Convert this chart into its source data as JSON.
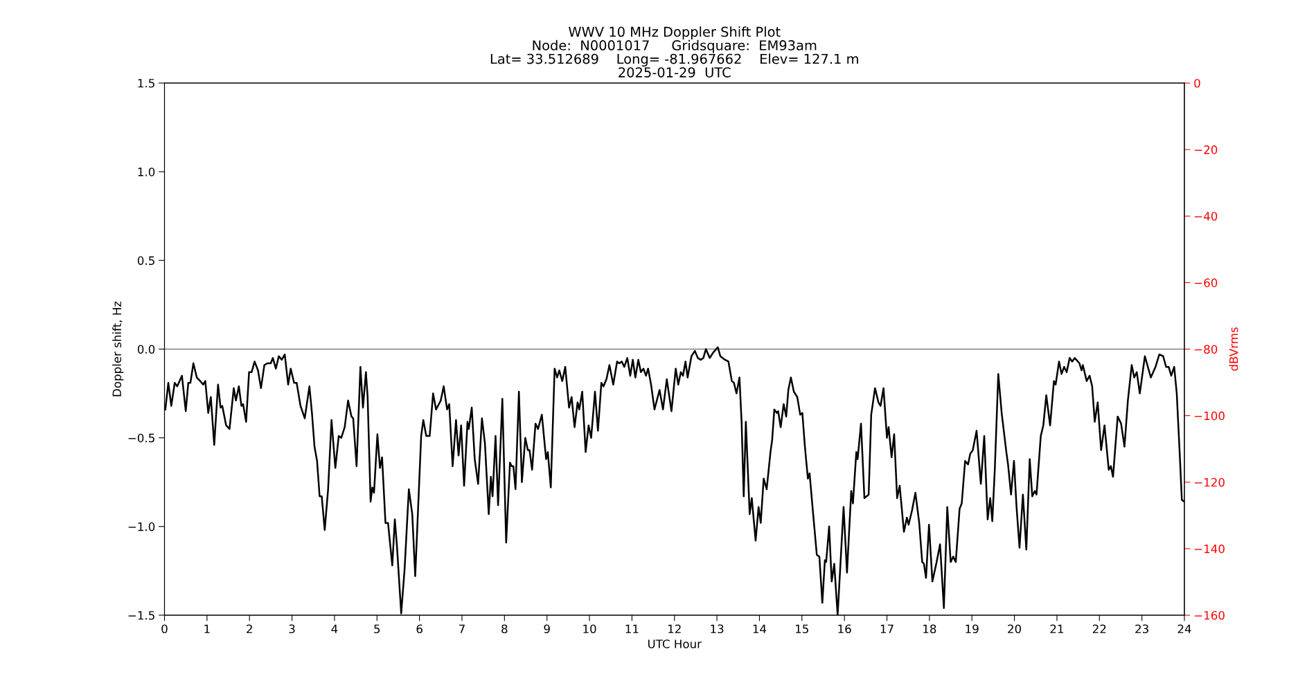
{
  "chart_data": {
    "type": "line",
    "title": "WWV 10 MHz Doppler Shift Plot\nNode:  N0001017     Gridsquare:  EM93am\nLat= 33.512689    Long= -81.967662    Elev= 127.1 m\n2025-01-29  UTC",
    "xlabel": "UTC Hour",
    "ylabel": "Doppler shift, Hz",
    "y2label": "dBVrms",
    "xlim": [
      0,
      24
    ],
    "xticks": [
      0,
      1,
      2,
      3,
      4,
      5,
      6,
      7,
      8,
      9,
      10,
      11,
      12,
      13,
      14,
      15,
      16,
      17,
      18,
      19,
      20,
      21,
      22,
      23,
      24
    ],
    "ylim": [
      -1.5,
      1.5
    ],
    "yticks": [
      {
        "value": -1.5,
        "label": "−1.5"
      },
      {
        "value": -1.0,
        "label": "−1.0"
      },
      {
        "value": -0.5,
        "label": "−0.5"
      },
      {
        "value": 0.0,
        "label": "0.0"
      },
      {
        "value": 0.5,
        "label": "0.5"
      },
      {
        "value": 1.0,
        "label": "1.0"
      },
      {
        "value": 1.5,
        "label": "1.5"
      }
    ],
    "y2lim": [
      -160,
      0
    ],
    "y2ticks": [
      {
        "value": -160,
        "label": "−160"
      },
      {
        "value": -140,
        "label": "−140"
      },
      {
        "value": -120,
        "label": "−120"
      },
      {
        "value": -100,
        "label": "−100"
      },
      {
        "value": -80,
        "label": "−80"
      },
      {
        "value": -60,
        "label": "−60"
      },
      {
        "value": -40,
        "label": "−40"
      },
      {
        "value": -20,
        "label": "−20"
      },
      {
        "value": 0,
        "label": "0"
      }
    ],
    "ref_lines": [
      {
        "axis": "y",
        "value": 0,
        "color": "#808080"
      }
    ],
    "grid": false,
    "legend": false,
    "marker": "none",
    "line_style": "solid",
    "series": [
      {
        "color": "#000000",
        "x": [
          0.02,
          0.09,
          0.16,
          0.24,
          0.3,
          0.41,
          0.5,
          0.56,
          0.61,
          0.68,
          0.76,
          0.84,
          0.91,
          0.96,
          1.03,
          1.09,
          1.17,
          1.26,
          1.32,
          1.36,
          1.45,
          1.53,
          1.63,
          1.68,
          1.75,
          1.81,
          1.85,
          1.92,
          1.99,
          2.05,
          2.12,
          2.2,
          2.27,
          2.35,
          2.42,
          2.5,
          2.55,
          2.62,
          2.69,
          2.76,
          2.83,
          2.91,
          2.97,
          3.05,
          3.11,
          3.2,
          3.3,
          3.41,
          3.47,
          3.53,
          3.59,
          3.65,
          3.7,
          3.77,
          3.85,
          3.93,
          4.02,
          4.1,
          4.16,
          4.24,
          4.32,
          4.4,
          4.44,
          4.52,
          4.61,
          4.67,
          4.74,
          4.78,
          4.85,
          4.89,
          4.93,
          5.01,
          5.07,
          5.12,
          5.2,
          5.26,
          5.36,
          5.42,
          5.47,
          5.57,
          5.65,
          5.75,
          5.83,
          5.9,
          6.04,
          6.09,
          6.16,
          6.24,
          6.32,
          6.39,
          6.5,
          6.57,
          6.65,
          6.7,
          6.78,
          6.86,
          6.92,
          6.98,
          7.05,
          7.13,
          7.16,
          7.23,
          7.3,
          7.38,
          7.47,
          7.54,
          7.63,
          7.68,
          7.72,
          7.79,
          7.85,
          7.95,
          8.04,
          8.13,
          8.17,
          8.21,
          8.26,
          8.34,
          8.41,
          8.49,
          8.55,
          8.59,
          8.65,
          8.73,
          8.79,
          8.88,
          8.98,
          9.02,
          9.09,
          9.18,
          9.24,
          9.29,
          9.36,
          9.43,
          9.52,
          9.58,
          9.65,
          9.72,
          9.76,
          9.83,
          9.91,
          9.98,
          10.04,
          10.13,
          10.2,
          10.28,
          10.33,
          10.4,
          10.47,
          10.56,
          10.65,
          10.7,
          10.76,
          10.82,
          10.89,
          10.96,
          11.02,
          11.08,
          11.15,
          11.21,
          11.27,
          11.33,
          11.38,
          11.45,
          11.53,
          11.65,
          11.73,
          11.82,
          11.93,
          12.03,
          12.09,
          12.15,
          12.2,
          12.26,
          12.31,
          12.4,
          12.48,
          12.55,
          12.62,
          12.68,
          12.74,
          12.83,
          12.91,
          13.02,
          13.08,
          13.19,
          13.27,
          13.35,
          13.4,
          13.46,
          13.53,
          13.58,
          13.63,
          13.68,
          13.77,
          13.82,
          13.91,
          13.98,
          14.03,
          14.1,
          14.17,
          14.26,
          14.3,
          14.35,
          14.41,
          14.44,
          14.5,
          14.57,
          14.63,
          14.68,
          14.74,
          14.81,
          14.89,
          14.96,
          15.01,
          15.07,
          15.14,
          15.18,
          15.26,
          15.35,
          15.41,
          15.48,
          15.54,
          15.57,
          15.64,
          15.7,
          15.76,
          15.84,
          15.98,
          16.06,
          16.16,
          16.2,
          16.28,
          16.31,
          16.39,
          16.47,
          16.57,
          16.63,
          16.72,
          16.8,
          16.85,
          16.92,
          17.0,
          17.04,
          17.11,
          17.17,
          17.24,
          17.3,
          17.4,
          17.47,
          17.51,
          17.59,
          17.67,
          17.76,
          17.83,
          17.87,
          17.92,
          17.99,
          18.07,
          18.17,
          18.25,
          18.34,
          18.42,
          18.5,
          18.56,
          18.62,
          18.71,
          18.76,
          18.84,
          18.91,
          18.96,
          19.02,
          19.11,
          19.21,
          19.29,
          19.37,
          19.43,
          19.48,
          19.54,
          19.62,
          19.7,
          19.81,
          19.85,
          19.92,
          19.99,
          20.05,
          20.12,
          20.2,
          20.28,
          20.36,
          20.42,
          20.48,
          20.52,
          20.62,
          20.68,
          20.75,
          20.84,
          20.93,
          20.97,
          21.05,
          21.11,
          21.17,
          21.23,
          21.3,
          21.36,
          21.42,
          21.53,
          21.58,
          21.61,
          21.7,
          21.77,
          21.83,
          21.89,
          21.96,
          22.04,
          22.12,
          22.22,
          22.27,
          22.32,
          22.43,
          22.51,
          22.59,
          22.67,
          22.76,
          22.82,
          22.88,
          22.95,
          23.07,
          23.21,
          23.32,
          23.41,
          23.5,
          23.57,
          23.63,
          23.69,
          23.76,
          23.82,
          23.89,
          23.94,
          24.0
        ],
        "values": [
          -0.34,
          -0.19,
          -0.32,
          -0.19,
          -0.21,
          -0.15,
          -0.35,
          -0.19,
          -0.19,
          -0.08,
          -0.16,
          -0.18,
          -0.2,
          -0.18,
          -0.36,
          -0.27,
          -0.54,
          -0.2,
          -0.33,
          -0.32,
          -0.43,
          -0.45,
          -0.22,
          -0.29,
          -0.21,
          -0.32,
          -0.31,
          -0.41,
          -0.13,
          -0.13,
          -0.07,
          -0.12,
          -0.22,
          -0.09,
          -0.08,
          -0.08,
          -0.05,
          -0.11,
          -0.04,
          -0.06,
          -0.03,
          -0.2,
          -0.11,
          -0.19,
          -0.19,
          -0.32,
          -0.39,
          -0.21,
          -0.36,
          -0.55,
          -0.63,
          -0.83,
          -0.83,
          -1.02,
          -0.79,
          -0.4,
          -0.67,
          -0.49,
          -0.5,
          -0.44,
          -0.29,
          -0.38,
          -0.39,
          -0.66,
          -0.1,
          -0.33,
          -0.13,
          -0.27,
          -0.86,
          -0.78,
          -0.81,
          -0.48,
          -0.67,
          -0.61,
          -0.98,
          -0.98,
          -1.22,
          -0.96,
          -1.11,
          -1.49,
          -1.24,
          -0.79,
          -0.93,
          -1.28,
          -0.49,
          -0.4,
          -0.49,
          -0.49,
          -0.25,
          -0.34,
          -0.29,
          -0.21,
          -0.34,
          -0.31,
          -0.66,
          -0.4,
          -0.6,
          -0.43,
          -0.77,
          -0.41,
          -0.45,
          -0.33,
          -0.62,
          -0.76,
          -0.39,
          -0.53,
          -0.93,
          -0.72,
          -0.83,
          -0.49,
          -0.88,
          -0.28,
          -1.09,
          -0.64,
          -0.66,
          -0.66,
          -0.79,
          -0.24,
          -0.75,
          -0.5,
          -0.57,
          -0.57,
          -0.68,
          -0.42,
          -0.45,
          -0.37,
          -0.62,
          -0.58,
          -0.78,
          -0.11,
          -0.16,
          -0.12,
          -0.18,
          -0.1,
          -0.33,
          -0.27,
          -0.44,
          -0.3,
          -0.34,
          -0.24,
          -0.58,
          -0.43,
          -0.5,
          -0.24,
          -0.46,
          -0.19,
          -0.21,
          -0.17,
          -0.09,
          -0.2,
          -0.07,
          -0.08,
          -0.07,
          -0.1,
          -0.05,
          -0.15,
          -0.06,
          -0.16,
          -0.06,
          -0.13,
          -0.11,
          -0.15,
          -0.11,
          -0.2,
          -0.34,
          -0.23,
          -0.34,
          -0.17,
          -0.35,
          -0.11,
          -0.2,
          -0.13,
          -0.15,
          -0.07,
          -0.16,
          -0.04,
          -0.01,
          -0.05,
          -0.06,
          -0.05,
          0.0,
          -0.05,
          -0.02,
          0.01,
          -0.04,
          -0.06,
          -0.07,
          -0.18,
          -0.19,
          -0.25,
          -0.16,
          -0.41,
          -0.83,
          -0.41,
          -0.93,
          -0.84,
          -1.08,
          -0.89,
          -0.98,
          -0.73,
          -0.79,
          -0.58,
          -0.51,
          -0.34,
          -0.36,
          -0.35,
          -0.44,
          -0.31,
          -0.38,
          -0.23,
          -0.16,
          -0.24,
          -0.27,
          -0.37,
          -0.36,
          -0.55,
          -0.73,
          -0.7,
          -0.92,
          -1.16,
          -1.17,
          -1.43,
          -1.19,
          -1.2,
          -1.0,
          -1.31,
          -1.21,
          -1.5,
          -0.89,
          -1.26,
          -0.8,
          -0.87,
          -0.58,
          -0.62,
          -0.42,
          -0.84,
          -0.82,
          -0.37,
          -0.22,
          -0.3,
          -0.32,
          -0.22,
          -0.5,
          -0.44,
          -0.61,
          -0.48,
          -0.84,
          -0.77,
          -1.03,
          -0.95,
          -0.99,
          -0.91,
          -0.81,
          -0.98,
          -1.2,
          -1.21,
          -1.29,
          -0.99,
          -1.31,
          -1.2,
          -1.1,
          -1.46,
          -0.89,
          -1.2,
          -1.17,
          -1.2,
          -0.9,
          -0.87,
          -0.63,
          -0.65,
          -0.59,
          -0.57,
          -0.46,
          -0.76,
          -0.49,
          -0.96,
          -0.84,
          -0.97,
          -0.67,
          -0.14,
          -0.36,
          -0.58,
          -0.65,
          -0.82,
          -0.63,
          -0.89,
          -1.12,
          -0.82,
          -1.13,
          -0.62,
          -0.83,
          -0.8,
          -0.82,
          -0.49,
          -0.43,
          -0.26,
          -0.43,
          -0.18,
          -0.2,
          -0.07,
          -0.14,
          -0.1,
          -0.13,
          -0.05,
          -0.07,
          -0.05,
          -0.08,
          -0.12,
          -0.09,
          -0.18,
          -0.15,
          -0.21,
          -0.41,
          -0.3,
          -0.57,
          -0.43,
          -0.68,
          -0.66,
          -0.72,
          -0.38,
          -0.42,
          -0.55,
          -0.29,
          -0.09,
          -0.16,
          -0.13,
          -0.25,
          -0.04,
          -0.16,
          -0.1,
          -0.03,
          -0.04,
          -0.1,
          -0.1,
          -0.15,
          -0.1,
          -0.25,
          -0.59,
          -0.85,
          -0.86
        ]
      }
    ]
  }
}
